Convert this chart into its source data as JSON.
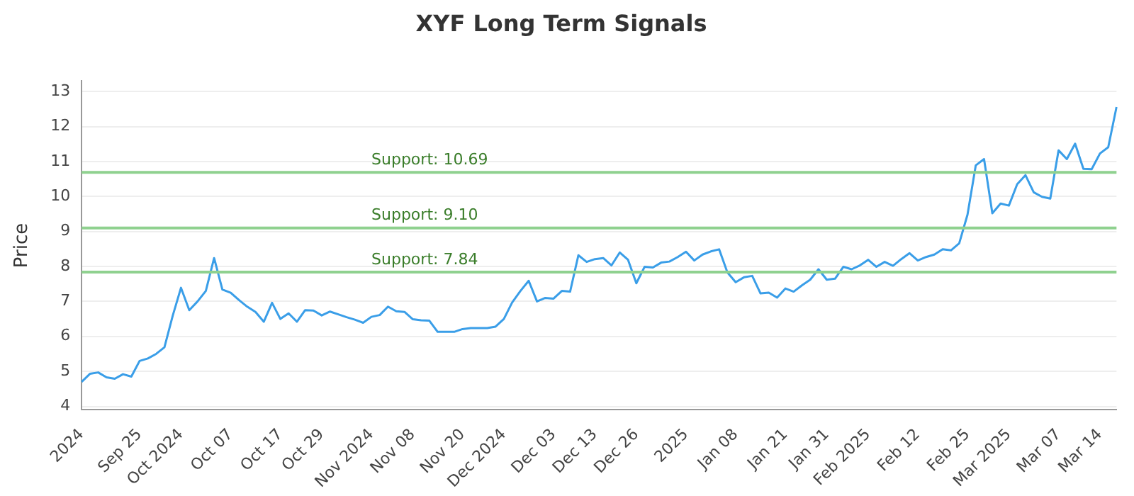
{
  "chart_data": {
    "type": "line",
    "title": "XYF Long Term Signals",
    "ylabel": "Price",
    "categories": [
      "2024",
      null,
      null,
      null,
      null,
      null,
      null,
      "Sep 25",
      null,
      null,
      null,
      null,
      "Oct 2024",
      null,
      null,
      null,
      null,
      null,
      "Oct 07",
      null,
      null,
      null,
      null,
      null,
      "Oct 17",
      null,
      null,
      null,
      null,
      "Oct 29",
      null,
      null,
      null,
      null,
      null,
      "Nov 2024",
      null,
      null,
      null,
      null,
      "Nov 08",
      null,
      null,
      null,
      null,
      null,
      "Nov 20",
      null,
      null,
      null,
      null,
      "Dec 2024",
      null,
      null,
      null,
      null,
      null,
      "Dec 03",
      null,
      null,
      null,
      null,
      "Dec 13",
      null,
      null,
      null,
      null,
      "Dec 26",
      null,
      null,
      null,
      null,
      null,
      "2025",
      null,
      null,
      null,
      null,
      null,
      "Jan 08",
      null,
      null,
      null,
      null,
      null,
      "Jan 21",
      null,
      null,
      null,
      null,
      "Jan 31",
      null,
      null,
      null,
      null,
      "Feb 2025",
      null,
      null,
      null,
      null,
      null,
      "Feb 12",
      null,
      null,
      null,
      null,
      null,
      "Feb 25",
      null,
      null,
      null,
      null,
      "Mar 2025",
      null,
      null,
      null,
      null,
      null,
      "Mar 07",
      null,
      null,
      null,
      null,
      "Mar 14",
      null,
      null
    ],
    "series": [
      {
        "color": "#3a9ee8",
        "values": [
          4.7,
          4.93,
          4.97,
          4.83,
          4.79,
          4.92,
          4.85,
          5.3,
          5.37,
          5.5,
          5.69,
          6.59,
          7.39,
          6.75,
          7.0,
          7.3,
          8.24,
          7.34,
          7.25,
          7.04,
          6.85,
          6.7,
          6.42,
          6.96,
          6.5,
          6.66,
          6.42,
          6.75,
          6.74,
          6.6,
          6.71,
          6.63,
          6.55,
          6.48,
          6.39,
          6.56,
          6.61,
          6.85,
          6.72,
          6.7,
          6.49,
          6.46,
          6.45,
          6.13,
          6.13,
          6.13,
          6.21,
          6.24,
          6.24,
          6.24,
          6.28,
          6.5,
          6.97,
          7.3,
          7.59,
          7.0,
          7.1,
          7.08,
          7.3,
          7.28,
          8.32,
          8.13,
          8.21,
          8.24,
          8.03,
          8.4,
          8.19,
          7.52,
          7.99,
          7.97,
          8.11,
          8.14,
          8.27,
          8.42,
          8.17,
          8.34,
          8.43,
          8.49,
          7.83,
          7.55,
          7.69,
          7.73,
          7.23,
          7.25,
          7.11,
          7.37,
          7.28,
          7.46,
          7.62,
          7.92,
          7.62,
          7.65,
          7.99,
          7.92,
          8.03,
          8.19,
          7.99,
          8.13,
          8.02,
          8.21,
          8.38,
          8.17,
          8.27,
          8.34,
          8.49,
          8.46,
          8.66,
          9.48,
          10.89,
          11.07,
          9.52,
          9.8,
          9.74,
          10.35,
          10.61,
          10.12,
          9.99,
          9.94,
          11.32,
          11.07,
          11.51,
          10.79,
          10.78,
          11.23,
          11.41,
          12.56
        ]
      }
    ],
    "ylim": [
      3.9,
      13.3
    ],
    "yticks": [
      4,
      5,
      6,
      7,
      8,
      9,
      10,
      11,
      12,
      13
    ],
    "grid": "y",
    "legend": false,
    "marker": "none",
    "line_style": "solid",
    "ref_lines": [
      {
        "axis": "y",
        "value": 10.69,
        "label": "Support: 10.69",
        "color": "#8fd18f"
      },
      {
        "axis": "y",
        "value": 9.1,
        "label": "Support: 9.10",
        "color": "#8fd18f"
      },
      {
        "axis": "y",
        "value": 7.84,
        "label": "Support: 7.84",
        "color": "#8fd18f"
      }
    ]
  }
}
